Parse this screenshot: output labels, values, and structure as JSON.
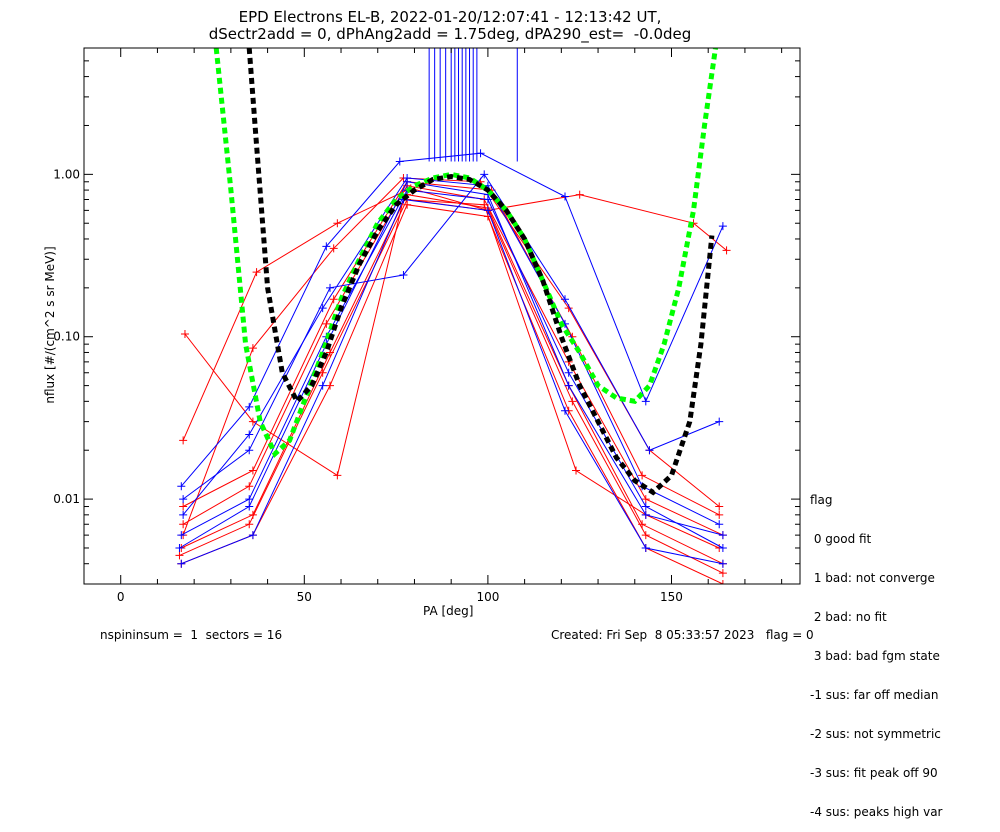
{
  "title": {
    "line1": "EPD Electrons EL-B, 2022-01-20/12:07:41 - 12:13:42 UT,",
    "line2": "dSectr2add = 0, dPhAng2add = 1.75deg, dPA290_est=  -0.0deg"
  },
  "footer": {
    "left": "nspininsum =  1  sectors = 16",
    "right": "Created: Fri Sep  8 05:33:57 2023   flag = 0"
  },
  "legend": {
    "title": "flag",
    "items": [
      " 0 good fit",
      " 1 bad: not converge",
      " 2 bad: no fit",
      " 3 bad: bad fgm state",
      "-1 sus: far off median",
      "-2 sus: not symmetric",
      "-3 sus: fit peak off 90",
      "-4 sus: peaks high var"
    ]
  },
  "chart_data": {
    "type": "line",
    "xlabel": "PA [deg]",
    "ylabel": "nflux [#/(cm^2 s sr MeV)]",
    "xlim": [
      -10,
      185
    ],
    "ylim": [
      0.003,
      6.0
    ],
    "yscale": "log",
    "xticks": [
      0,
      50,
      100,
      150
    ],
    "xtick_labels": [
      "0",
      "50",
      "100",
      "150"
    ],
    "yticks": [
      0.01,
      0.1,
      1.0
    ],
    "ytick_labels": [
      "0.01",
      "0.10",
      "1.00"
    ],
    "grid": false,
    "colors": {
      "red": "#ff0000",
      "blue": "#0000ff",
      "green": "#00ff00",
      "black": "#000000"
    },
    "series": [
      {
        "color": "#ff0000",
        "x": [
          16.5,
          36,
          57,
          78,
          100,
          122,
          142,
          164
        ],
        "y": [
          0.005,
          0.008,
          0.08,
          0.75,
          0.62,
          0.05,
          0.007,
          0.004
        ]
      },
      {
        "color": "#ff0000",
        "x": [
          17,
          35,
          56,
          78,
          99,
          122,
          143,
          164
        ],
        "y": [
          0.007,
          0.012,
          0.12,
          0.85,
          0.7,
          0.07,
          0.01,
          0.006
        ]
      },
      {
        "color": "#ff0000",
        "x": [
          16.5,
          36,
          57,
          78,
          100,
          122,
          143,
          164
        ],
        "y": [
          0.004,
          0.006,
          0.05,
          0.65,
          0.55,
          0.035,
          0.005,
          0.003
        ]
      },
      {
        "color": "#ff0000",
        "x": [
          17,
          36,
          58,
          78,
          101,
          123,
          142,
          163
        ],
        "y": [
          0.009,
          0.015,
          0.17,
          0.9,
          0.8,
          0.1,
          0.014,
          0.008
        ]
      },
      {
        "color": "#ff0000",
        "x": [
          17,
          37,
          59,
          79,
          100,
          125,
          156,
          165
        ],
        "y": [
          0.023,
          0.25,
          0.5,
          0.82,
          0.6,
          0.75,
          0.5,
          0.34
        ]
      },
      {
        "color": "#ff0000",
        "x": [
          17,
          36,
          58,
          77,
          98,
          122,
          144,
          163
        ],
        "y": [
          0.006,
          0.085,
          0.35,
          0.95,
          0.9,
          0.15,
          0.02,
          0.009
        ]
      },
      {
        "color": "#ff0000",
        "x": [
          17.5,
          36,
          59,
          77,
          99,
          124,
          143,
          163
        ],
        "y": [
          0.104,
          0.03,
          0.014,
          0.7,
          0.65,
          0.015,
          0.008,
          0.005
        ]
      },
      {
        "color": "#ff0000",
        "x": [
          16,
          35,
          55,
          78,
          100,
          123,
          143,
          164
        ],
        "y": [
          0.0045,
          0.007,
          0.06,
          0.7,
          0.6,
          0.04,
          0.006,
          0.0035
        ]
      },
      {
        "color": "#0000ff",
        "x": [
          16.5,
          35,
          56,
          78,
          100,
          122,
          143,
          164
        ],
        "y": [
          0.006,
          0.01,
          0.1,
          0.8,
          0.7,
          0.06,
          0.009,
          0.005
        ]
      },
      {
        "color": "#0000ff",
        "x": [
          17,
          35,
          55,
          78,
          100,
          121,
          142,
          163
        ],
        "y": [
          0.008,
          0.025,
          0.15,
          0.95,
          0.85,
          0.12,
          0.012,
          0.007
        ]
      },
      {
        "color": "#0000ff",
        "x": [
          16.5,
          36,
          55,
          77,
          100,
          121,
          143,
          164
        ],
        "y": [
          0.004,
          0.006,
          0.05,
          0.7,
          0.6,
          0.035,
          0.005,
          0.004
        ]
      },
      {
        "color": "#0000ff",
        "x": [
          16.5,
          35,
          56,
          76,
          98,
          121,
          143,
          164
        ],
        "y": [
          0.012,
          0.037,
          0.36,
          1.2,
          1.35,
          0.73,
          0.04,
          0.48
        ]
      },
      {
        "color": "#0000ff",
        "x": [
          17,
          35,
          57,
          77,
          99,
          121,
          144,
          163
        ],
        "y": [
          0.01,
          0.02,
          0.2,
          0.24,
          1.0,
          0.17,
          0.02,
          0.03
        ]
      },
      {
        "color": "#0000ff",
        "x": [
          16,
          35,
          56,
          78,
          100,
          122,
          143,
          164
        ],
        "y": [
          0.005,
          0.009,
          0.09,
          0.9,
          0.75,
          0.05,
          0.008,
          0.006
        ]
      }
    ],
    "fits": [
      {
        "name": "",
        "color": "#00ff00",
        "style": "dashed",
        "x": [
          26,
          30,
          34,
          38,
          42,
          46,
          50,
          55,
          60,
          65,
          70,
          75,
          80,
          85,
          90,
          95,
          100,
          105,
          110,
          115,
          120,
          125,
          130,
          135,
          140,
          144,
          148,
          152,
          156,
          159,
          162
        ],
        "y": [
          6.0,
          0.8,
          0.09,
          0.03,
          0.019,
          0.023,
          0.04,
          0.08,
          0.17,
          0.3,
          0.5,
          0.7,
          0.85,
          0.95,
          1.0,
          0.95,
          0.8,
          0.6,
          0.4,
          0.22,
          0.12,
          0.08,
          0.05,
          0.042,
          0.04,
          0.05,
          0.09,
          0.2,
          0.6,
          2.0,
          6.0
        ]
      },
      {
        "name": "",
        "color": "#000000",
        "style": "dashed",
        "x": [
          35,
          37,
          40,
          44,
          48,
          52,
          56,
          60,
          65,
          70,
          75,
          80,
          85,
          90,
          95,
          100,
          105,
          110,
          115,
          120,
          125,
          130,
          135,
          140,
          145,
          150,
          155,
          158,
          160,
          161
        ],
        "y": [
          6.0,
          1.5,
          0.2,
          0.06,
          0.04,
          0.05,
          0.08,
          0.15,
          0.28,
          0.45,
          0.65,
          0.8,
          0.93,
          0.97,
          0.93,
          0.8,
          0.6,
          0.4,
          0.22,
          0.1,
          0.05,
          0.03,
          0.018,
          0.013,
          0.011,
          0.014,
          0.03,
          0.09,
          0.25,
          0.42
        ]
      }
    ],
    "saturated_spikes": {
      "color": "#0000ff",
      "x": [
        84,
        85.5,
        87,
        88.5,
        90,
        91,
        92,
        93,
        94,
        95,
        96,
        97,
        108
      ],
      "y_from": [
        1.2,
        1.2,
        1.2,
        1.2,
        1.2,
        1.2,
        1.2,
        1.2,
        1.2,
        1.2,
        1.2,
        1.2,
        1.2
      ]
    }
  }
}
